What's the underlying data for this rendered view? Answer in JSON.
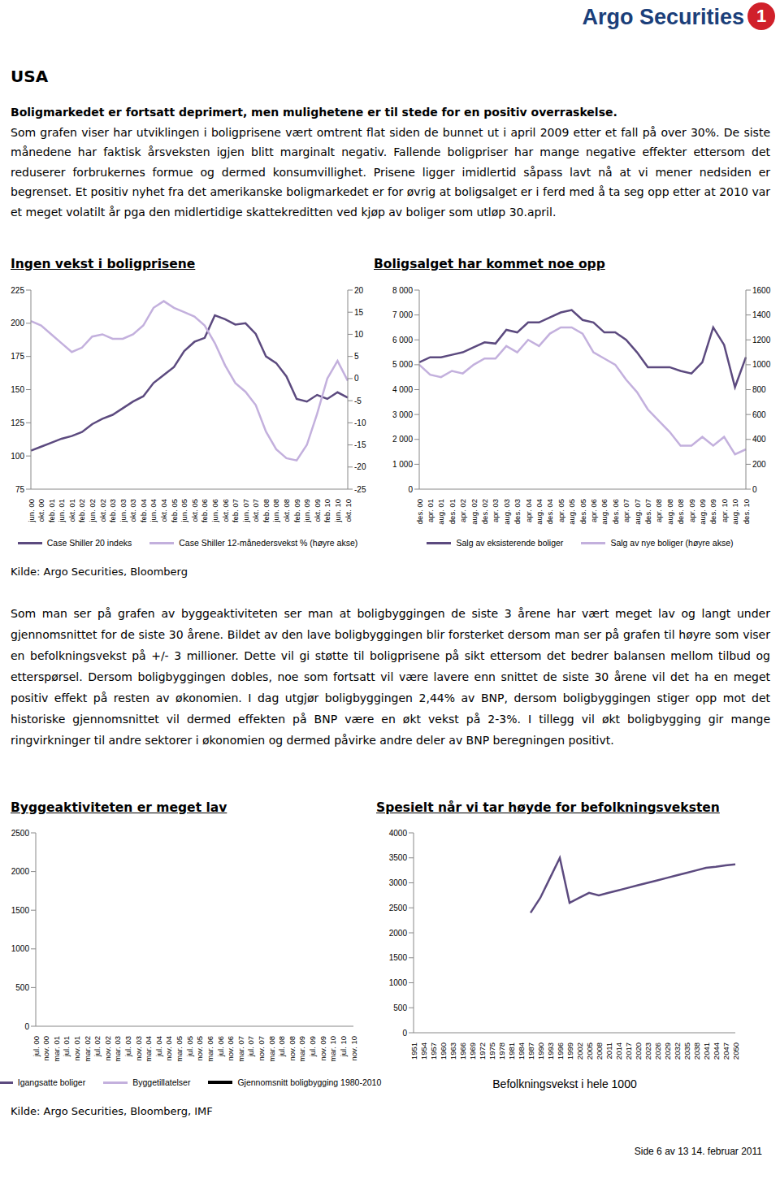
{
  "header": {
    "brand": "Argo Securities",
    "logo_text": "1"
  },
  "section_title": "USA",
  "paragraph1": {
    "lead": "Boligmarkedet er fortsatt deprimert, men mulighetene er til stede for en positiv overraskelse.",
    "text": "Som grafen viser har utviklingen i boligprisene vært omtrent flat siden de bunnet ut i april 2009 etter et fall på over 30%. De siste månedene har faktisk årsveksten igjen blitt marginalt negativ. Fallende boligpriser har mange negative effekter ettersom det reduserer forbrukernes formue og dermed konsumvillighet. Prisene ligger imidlertid såpass lavt nå at vi mener nedsiden er begrenset. Et positiv nyhet fra det amerikanske boligmarkedet er for øvrig at boligsalget er i ferd med å ta seg opp etter at 2010 var et meget volatilt år pga den midlertidige skattekreditten ved kjøp av boliger som utløp 30.april."
  },
  "source1": "Kilde: Argo Securities, Bloomberg",
  "paragraph2": "Som man ser på grafen av byggeaktiviteten ser man at boligbyggingen de siste 3 årene har vært meget lav og langt under gjennomsnittet for de siste 30 årene. Bildet av den lave boligbyggingen blir forsterket dersom man ser på grafen til høyre som viser en befolkningsvekst på +/- 3 millioner. Dette vil gi støtte til boligprisene på sikt ettersom det bedrer balansen mellom tilbud og etterspørsel. Dersom boligbyggingen dobles, noe som fortsatt vil være lavere enn snittet de siste 30 årene vil det ha en meget positiv effekt på resten av økonomien. I dag utgjør boligbyggingen 2,44% av BNP, dersom boligbyggingen stiger opp mot det historiske gjennomsnittet vil dermed effekten på BNP være en økt vekst på 2-3%. I tillegg vil økt boligbygging gir mange ringvirkninger til andre sektorer i økonomien og dermed påvirke andre deler av BNP beregningen positivt.",
  "source2": "Kilde: Argo Securities, Bloomberg, IMF",
  "footer": "Side 6 av 13 14. februar 2011",
  "chart_data": [
    {
      "type": "line",
      "title": "Ingen vekst i boligprisene",
      "categories": [
        "jun. 00",
        "okt. 00",
        "feb. 01",
        "jun. 01",
        "okt. 01",
        "feb. 02",
        "jun. 02",
        "okt. 02",
        "feb. 03",
        "jun. 03",
        "okt. 03",
        "feb. 04",
        "jun. 04",
        "okt. 04",
        "feb. 05",
        "jun. 05",
        "okt. 05",
        "feb. 06",
        "jun. 06",
        "okt. 06",
        "feb. 07",
        "jun. 07",
        "okt. 07",
        "feb. 08",
        "jun. 08",
        "okt. 08",
        "feb. 09",
        "jun. 09",
        "okt. 09",
        "feb. 10",
        "jun. 10",
        "okt. 10"
      ],
      "series": [
        {
          "name": "Case Shiller 20 indeks",
          "color": "#5c4a7f",
          "axis": "y",
          "values": [
            104,
            107,
            110,
            113,
            115,
            118,
            124,
            128,
            131,
            136,
            141,
            145,
            155,
            161,
            167,
            179,
            186,
            189,
            206,
            203,
            199,
            200,
            192,
            175,
            170,
            160,
            143,
            141,
            146,
            143,
            148,
            144
          ]
        },
        {
          "name": "Case Shiller 12-månedersvekst % (høyre akse)",
          "color": "#c3b0dd",
          "axis": "y2",
          "values": [
            13,
            12,
            10,
            8,
            6,
            7,
            9.5,
            10,
            9,
            9,
            10,
            12,
            16,
            17.5,
            16,
            15,
            14,
            12,
            8,
            3,
            -1,
            -3,
            -6,
            -12,
            -16,
            -18,
            -18.5,
            -15,
            -8,
            0,
            4,
            -0.5
          ]
        }
      ],
      "ylim": [
        75,
        225
      ],
      "yticks": [
        75,
        100,
        125,
        150,
        175,
        200,
        225
      ],
      "y2lim": [
        -25,
        20
      ],
      "y2ticks": [
        -25,
        -20,
        -15,
        -10,
        -5,
        0,
        5,
        10,
        15,
        20
      ],
      "grid": false,
      "legend": "bottom"
    },
    {
      "type": "line",
      "title": "Boligsalget har kommet noe opp",
      "categories": [
        "des. 00",
        "apr. 01",
        "aug. 01",
        "des. 01",
        "apr. 02",
        "aug. 02",
        "des. 02",
        "apr. 03",
        "aug. 03",
        "des. 03",
        "apr. 04",
        "aug. 04",
        "des. 04",
        "apr. 05",
        "aug. 05",
        "des. 05",
        "apr. 06",
        "aug. 06",
        "des. 06",
        "apr. 07",
        "aug. 07",
        "des. 07",
        "apr. 08",
        "aug. 08",
        "des. 08",
        "apr. 09",
        "aug. 09",
        "des. 09",
        "apr. 10",
        "aug. 10",
        "des. 10"
      ],
      "series": [
        {
          "name": "Salg av eksisterende boliger",
          "color": "#5c4a7f",
          "axis": "y",
          "values": [
            5100,
            5300,
            5300,
            5400,
            5500,
            5700,
            5900,
            5850,
            6400,
            6300,
            6700,
            6700,
            6900,
            7100,
            7200,
            6800,
            6700,
            6300,
            6300,
            6000,
            5500,
            4900,
            4900,
            4900,
            4750,
            4650,
            5100,
            6500,
            5800,
            4100,
            5300
          ]
        },
        {
          "name": "Salg av nye boliger (høyre akse)",
          "color": "#c3b0dd",
          "axis": "y2",
          "values": [
            1000,
            920,
            900,
            950,
            930,
            1000,
            1050,
            1050,
            1150,
            1100,
            1200,
            1150,
            1250,
            1300,
            1300,
            1250,
            1100,
            1050,
            1000,
            880,
            780,
            640,
            550,
            460,
            350,
            350,
            420,
            350,
            420,
            280,
            320
          ]
        }
      ],
      "ylim": [
        0,
        8000
      ],
      "yticks": [
        0,
        {
          "value": 1000,
          "label": "1 000"
        },
        {
          "value": 2000,
          "label": "2 000"
        },
        {
          "value": 3000,
          "label": "3 000"
        },
        {
          "value": 4000,
          "label": "4 000"
        },
        {
          "value": 5000,
          "label": "5 000"
        },
        {
          "value": 6000,
          "label": "6 000"
        },
        {
          "value": 7000,
          "label": "7 000"
        },
        {
          "value": 8000,
          "label": "8 000"
        }
      ],
      "y2lim": [
        0,
        1600
      ],
      "y2ticks": [
        0,
        200,
        400,
        600,
        800,
        1000,
        1200,
        1400,
        1600
      ],
      "grid": false,
      "legend": "bottom"
    },
    {
      "type": "line",
      "title": "Byggeaktiviteten er meget lav",
      "categories": [
        "jul. 00",
        "nov. 00",
        "mar. 01",
        "jul. 01",
        "nov. 01",
        "mar. 02",
        "jul. 02",
        "nov. 02",
        "mar. 03",
        "jul. 03",
        "nov. 03",
        "mar. 04",
        "jul. 04",
        "nov. 04",
        "mar. 05",
        "jul. 05",
        "nov. 05",
        "mar. 06",
        "jul. 06",
        "nov. 06",
        "mar. 07",
        "jul. 07",
        "nov. 07",
        "mar. 08",
        "jul. 08",
        "nov. 08",
        "mar. 09",
        "jul. 09",
        "nov. 09",
        "mar. 10",
        "jul. 10",
        "nov. 10"
      ],
      "series": [
        {
          "name": "Igangsatte boliger",
          "color": "#5c4a7f",
          "axis": "y",
          "values": [
            null,
            null,
            null,
            null,
            null,
            null,
            null,
            null,
            null,
            null,
            null,
            null,
            null,
            null,
            null,
            null,
            null,
            null,
            null,
            null,
            null,
            null,
            null,
            null,
            null,
            null,
            null,
            null,
            null,
            null,
            null,
            null
          ]
        },
        {
          "name": "Byggetillatelser",
          "color": "#c3b0dd",
          "axis": "y",
          "values": [
            null,
            null,
            null,
            null,
            null,
            null,
            null,
            null,
            null,
            null,
            null,
            null,
            null,
            null,
            null,
            null,
            null,
            null,
            null,
            null,
            null,
            null,
            null,
            null,
            null,
            null,
            null,
            null,
            null,
            null,
            null,
            null
          ]
        },
        {
          "name": "Gjennomsnitt boligbygging 1980-2010",
          "color": "#000000",
          "axis": "y",
          "values": [
            null,
            null,
            null,
            null,
            null,
            null,
            null,
            null,
            null,
            null,
            null,
            null,
            null,
            null,
            null,
            null,
            null,
            null,
            null,
            null,
            null,
            null,
            null,
            null,
            null,
            null,
            null,
            null,
            null,
            null,
            null,
            null
          ]
        }
      ],
      "ylim": [
        0,
        2500
      ],
      "yticks": [
        0,
        500,
        1000,
        1500,
        2000,
        2500
      ],
      "grid": false,
      "legend": "bottom"
    },
    {
      "type": "line",
      "title": "Spesielt når vi tar høyde for befolkningsveksten",
      "categories": [
        "1951",
        "1954",
        "1957",
        "1960",
        "1963",
        "1966",
        "1969",
        "1972",
        "1975",
        "1978",
        "1981",
        "1984",
        "1987",
        "1990",
        "1993",
        "1996",
        "1999",
        "2002",
        "2005",
        "2008",
        "2011",
        "2014",
        "2017",
        "2020",
        "2023",
        "2026",
        "2029",
        "2032",
        "2035",
        "2038",
        "2041",
        "2044",
        "2047",
        "2050"
      ],
      "series": [
        {
          "name": "Befolkningsvekst i hele 1000",
          "color": "#5c4a7f",
          "axis": "y",
          "values": [
            null,
            null,
            null,
            null,
            null,
            null,
            null,
            null,
            null,
            null,
            null,
            null,
            2400,
            2700,
            3100,
            3500,
            2600,
            2700,
            2800,
            2750,
            2800,
            2850,
            2900,
            2950,
            3000,
            3050,
            3100,
            3150,
            3200,
            3250,
            3300,
            3320,
            3350,
            3370
          ]
        }
      ],
      "ylim": [
        0,
        4000
      ],
      "yticks": [
        0,
        500,
        1000,
        1500,
        2000,
        2500,
        3000,
        3500,
        4000
      ],
      "grid": false,
      "legend": "bottom"
    }
  ]
}
